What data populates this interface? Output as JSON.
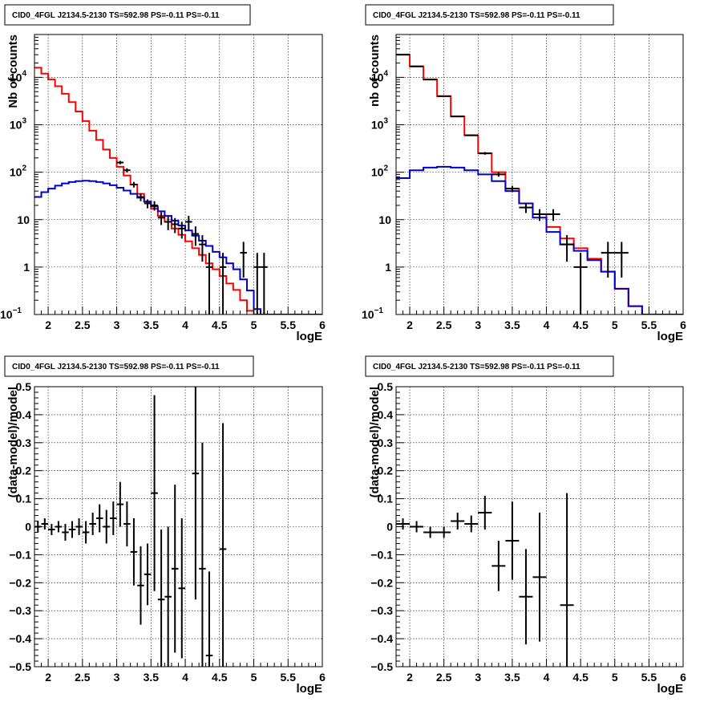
{
  "chart_data": [
    {
      "type": "histogram",
      "title": "CID0_4FGL J2134.5-2130 TS=592.98 PS=-0.11 PS=-0.11",
      "xlabel": "logE",
      "ylabel": "Nb of counts",
      "xlim": [
        1.8,
        6.0
      ],
      "ylim": [
        0.1,
        80000
      ],
      "yscale": "log",
      "grid": true,
      "xticks": [
        "2",
        "2.5",
        "3",
        "3.5",
        "4",
        "4.5",
        "5",
        "5.5",
        "6"
      ],
      "yticks": [
        "10⁻¹",
        "1",
        "10",
        "10²",
        "10³",
        "10⁴"
      ],
      "colors": {
        "model_total": "#ff0000",
        "model_source": "#0000cc",
        "data": "#000000"
      },
      "bin_width": 0.1,
      "series": [
        {
          "role": "model_total",
          "x_start": 1.8,
          "values": [
            16000,
            12000,
            9000,
            6500,
            4500,
            3000,
            1900,
            1200,
            750,
            480,
            300,
            200,
            130,
            85,
            55,
            35,
            24,
            17,
            12,
            9,
            6.5,
            4.8,
            3.5,
            2.5,
            1.8,
            1.2,
            0.9,
            0.65,
            0.45,
            0.33,
            0.2,
            0.12,
            0.1,
            0.1,
            0.1,
            0.1,
            0.1,
            0.1,
            0.1,
            0.1,
            0.1,
            0.1
          ]
        },
        {
          "role": "model_source",
          "x_start": 1.8,
          "values": [
            30,
            38,
            45,
            52,
            58,
            62,
            65,
            66,
            65,
            62,
            58,
            53,
            47,
            41,
            35,
            29,
            24,
            19,
            15,
            12,
            9.5,
            7.5,
            5.9,
            4.6,
            3.6,
            2.8,
            2.1,
            1.6,
            1.2,
            0.9,
            0.55,
            0.32,
            0.13,
            0.1,
            0.1,
            0.1,
            0.1,
            0.1,
            0.1,
            0.1,
            0.1,
            0.1
          ]
        },
        {
          "role": "data",
          "x": [
            3.05,
            3.15,
            3.25,
            3.35,
            3.45,
            3.55,
            3.65,
            3.75,
            3.85,
            3.95,
            4.05,
            4.15,
            4.25,
            4.35,
            4.55,
            4.85,
            5.05,
            5.15
          ],
          "y": [
            160,
            110,
            55,
            30,
            22,
            20,
            11,
            9,
            8,
            6.5,
            9,
            5,
            3,
            1,
            1,
            2,
            1,
            1
          ],
          "err": [
            13,
            11,
            7.5,
            5.5,
            4.7,
            4.5,
            3.3,
            3,
            2.8,
            2.5,
            3,
            2.2,
            1.7,
            1,
            1,
            1.4,
            1,
            1
          ]
        }
      ]
    },
    {
      "type": "histogram",
      "title": "CID0_4FGL J2134.5-2130 TS=592.98 PS=-0.11 PS=-0.11",
      "xlabel": "logE",
      "ylabel": "nb of counts",
      "xlim": [
        1.8,
        6.0
      ],
      "ylim": [
        0.1,
        80000
      ],
      "yscale": "log",
      "grid": true,
      "xticks": [
        "2",
        "2.5",
        "3",
        "3.5",
        "4",
        "4.5",
        "5",
        "5.5",
        "6"
      ],
      "yticks": [
        "10⁻¹",
        "1",
        "10",
        "10²",
        "10³",
        "10⁴"
      ],
      "colors": {
        "model_total": "#ff0000",
        "model_source": "#0000cc",
        "data": "#000000"
      },
      "bin_width": 0.2,
      "series": [
        {
          "role": "model_total",
          "x_start": 1.8,
          "values": [
            30000,
            17000,
            9000,
            4000,
            1500,
            600,
            250,
            100,
            45,
            22,
            13,
            7,
            4,
            2.5,
            1.5,
            0.8,
            0.35,
            0.15,
            0.1,
            0.1,
            0.1
          ]
        },
        {
          "role": "model_source",
          "x_start": 1.8,
          "values": [
            75,
            110,
            125,
            130,
            125,
            110,
            90,
            65,
            40,
            22,
            11,
            5.5,
            3,
            2.2,
            1.4,
            0.8,
            0.35,
            0.15,
            0.1,
            0.1,
            0.1
          ]
        },
        {
          "role": "data",
          "x": [
            1.9,
            2.1,
            2.3,
            2.5,
            2.7,
            2.9,
            3.1,
            3.3,
            3.5,
            3.7,
            3.9,
            4.1,
            4.3,
            4.5,
            4.9,
            5.1
          ],
          "y": [
            30000,
            17000,
            9000,
            4000,
            1500,
            600,
            250,
            90,
            45,
            18,
            13,
            13,
            3,
            1,
            2,
            2
          ],
          "err": [
            173,
            130,
            95,
            63,
            39,
            24,
            16,
            9.5,
            6.7,
            4.2,
            3.6,
            3.6,
            1.7,
            1,
            1.4,
            1.4
          ]
        }
      ]
    },
    {
      "type": "scatter",
      "title": "CID0_4FGL J2134.5-2130 TS=592.98 PS=-0.11 PS=-0.11",
      "xlabel": "logE",
      "ylabel": "(data-model)/model",
      "xlim": [
        1.8,
        6.0
      ],
      "ylim": [
        -0.5,
        0.5
      ],
      "grid": true,
      "xticks": [
        "2",
        "2.5",
        "3",
        "3.5",
        "4",
        "4.5",
        "5",
        "5.5",
        "6"
      ],
      "yticks": [
        "−0.5",
        "−0.4",
        "−0.3",
        "−0.2",
        "−0.1",
        "0",
        "0.1",
        "0.2",
        "0.3",
        "0.4",
        "0.5"
      ],
      "xerr": 0.05,
      "points": {
        "x": [
          1.85,
          1.95,
          2.05,
          2.15,
          2.25,
          2.35,
          2.45,
          2.55,
          2.65,
          2.75,
          2.85,
          2.95,
          3.05,
          3.15,
          3.25,
          3.35,
          3.45,
          3.55,
          3.65,
          3.75,
          3.85,
          3.95,
          4.15,
          4.25,
          4.35,
          4.55
        ],
        "y": [
          0.0,
          0.01,
          -0.01,
          0.0,
          -0.02,
          -0.01,
          0.0,
          -0.02,
          0.01,
          0.03,
          0.0,
          0.03,
          0.08,
          0.01,
          -0.09,
          -0.21,
          -0.17,
          0.12,
          -0.26,
          -0.25,
          -0.15,
          -0.22,
          0.19,
          -0.15,
          -0.46,
          -0.08
        ],
        "err": [
          0.02,
          0.02,
          0.02,
          0.02,
          0.03,
          0.03,
          0.03,
          0.04,
          0.04,
          0.05,
          0.06,
          0.06,
          0.08,
          0.08,
          0.12,
          0.14,
          0.11,
          0.35,
          0.25,
          0.25,
          0.3,
          0.25,
          0.45,
          0.45,
          0.3,
          0.45
        ]
      }
    },
    {
      "type": "scatter",
      "title": "CID0_4FGL J2134.5-2130 TS=592.98 PS=-0.11 PS=-0.11",
      "xlabel": "logE",
      "ylabel": "(data-model)/model",
      "xlim": [
        1.8,
        6.0
      ],
      "ylim": [
        -0.5,
        0.5
      ],
      "grid": true,
      "xticks": [
        "2",
        "2.5",
        "3",
        "3.5",
        "4",
        "4.5",
        "5",
        "5.5",
        "6"
      ],
      "yticks": [
        "−0.5",
        "−0.4",
        "−0.3",
        "−0.2",
        "−0.1",
        "0",
        "0.1",
        "0.2",
        "0.3",
        "0.4",
        "0.5"
      ],
      "xerr": 0.1,
      "points": {
        "x": [
          1.9,
          2.1,
          2.3,
          2.5,
          2.7,
          2.9,
          3.1,
          3.3,
          3.5,
          3.7,
          3.9,
          4.3
        ],
        "y": [
          0.01,
          0.0,
          -0.02,
          -0.02,
          0.02,
          0.01,
          0.05,
          -0.14,
          -0.05,
          -0.25,
          -0.18,
          -0.28
        ],
        "err": [
          0.02,
          0.02,
          0.02,
          0.02,
          0.03,
          0.03,
          0.06,
          0.09,
          0.14,
          0.17,
          0.23,
          0.4
        ]
      }
    }
  ]
}
